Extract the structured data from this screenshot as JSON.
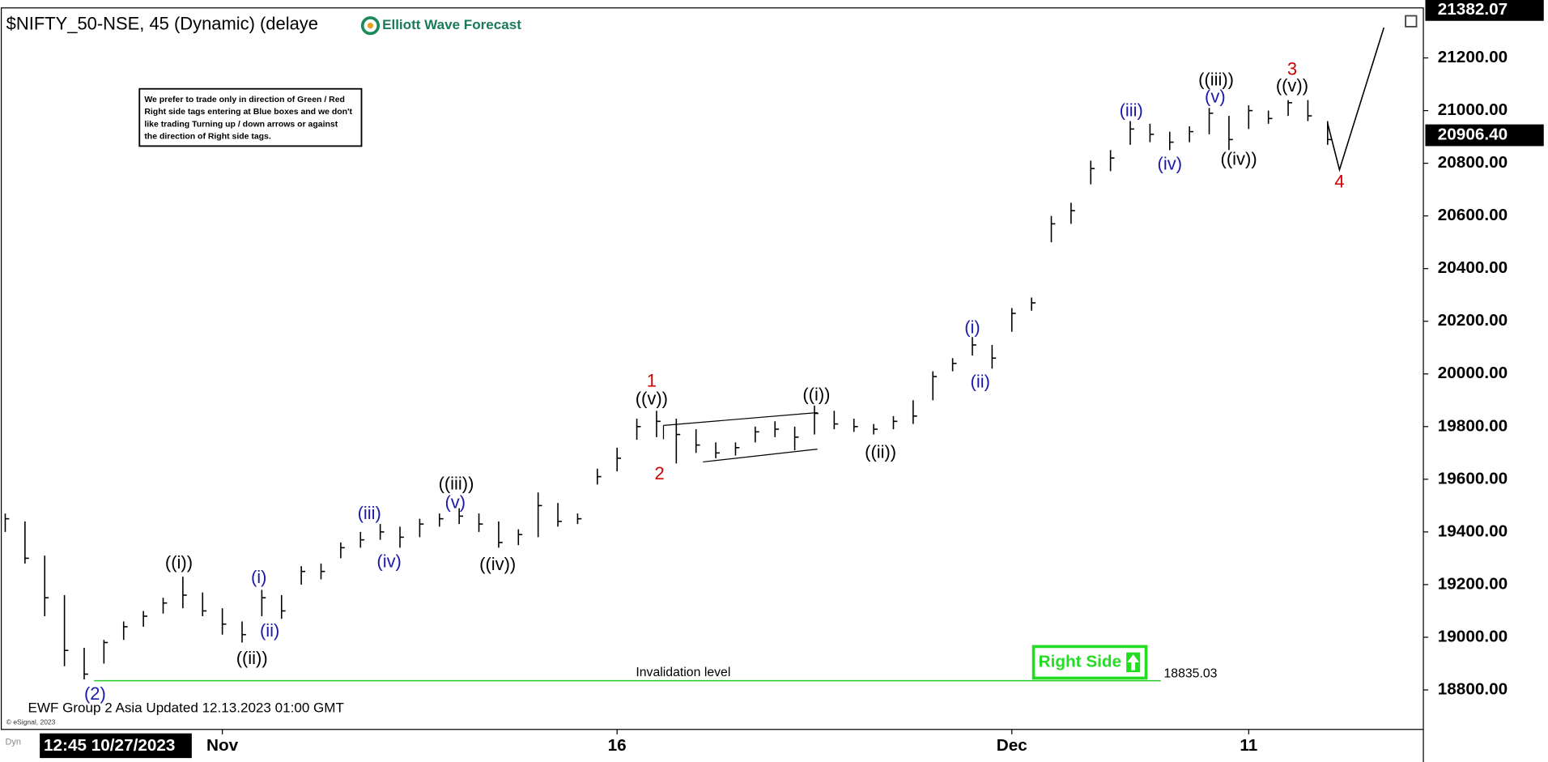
{
  "chart_data": {
    "type": "ohlc",
    "title": "$NIFTY_50-NSE, 45 (Dynamic) (delaye",
    "logo": "Elliott Wave Forecast",
    "note": [
      "We prefer to trade only in direction of Green / Red",
      "Right side tags entering at Blue boxes and we don't",
      "like trading Turning up / down arrows or against",
      "the direction of Right side tags."
    ],
    "footer": "EWF Group 2 Asia Updated 12.13.2023 01:00 GMT",
    "copyright": "© eSignal, 2023",
    "cursor_label": "12:45 10/27/2023",
    "corner_label": "Dyn",
    "right_side": {
      "text": "Right Side",
      "color": "#22dd22"
    },
    "color": "#000000",
    "categories": [
      null,
      null,
      null,
      null,
      null,
      null,
      null,
      null,
      null,
      null,
      null,
      "Nov",
      null,
      null,
      null,
      null,
      null,
      null,
      null,
      null,
      null,
      null,
      null,
      null,
      null,
      null,
      null,
      null,
      null,
      null,
      null,
      "16",
      null,
      null,
      null,
      null,
      null,
      null,
      null,
      null,
      null,
      null,
      null,
      null,
      null,
      null,
      null,
      null,
      null,
      null,
      null,
      "Dec",
      null,
      null,
      null,
      null,
      null,
      null,
      null,
      null,
      null,
      null,
      null,
      "11",
      null,
      null,
      null,
      null
    ],
    "high": [
      19470,
      19440,
      19310,
      19160,
      18960,
      18990,
      19060,
      19100,
      19150,
      19230,
      19170,
      19110,
      19060,
      19180,
      19160,
      19270,
      19280,
      19360,
      19400,
      19430,
      19420,
      19450,
      19470,
      19490,
      19470,
      19440,
      19410,
      19550,
      19510,
      19470,
      19640,
      19720,
      19830,
      19860,
      19830,
      19790,
      19740,
      19740,
      19800,
      19820,
      19800,
      19880,
      19860,
      19830,
      19810,
      19840,
      19900,
      20010,
      20060,
      20140,
      20110,
      20250,
      20290,
      20600,
      20650,
      20810,
      20850,
      20960,
      20950,
      20920,
      20940,
      21010,
      20980,
      21020,
      21000,
      21040,
      21040,
      20960
    ],
    "low": [
      19400,
      19280,
      19080,
      18890,
      18840,
      18900,
      18990,
      19040,
      19090,
      19110,
      19080,
      19010,
      18980,
      19080,
      19070,
      19200,
      19220,
      19300,
      19340,
      19370,
      19340,
      19380,
      19420,
      19430,
      19400,
      19340,
      19350,
      19380,
      19420,
      19430,
      19580,
      19630,
      19750,
      19760,
      19660,
      19700,
      19680,
      19690,
      19740,
      19760,
      19710,
      19770,
      19790,
      19780,
      19770,
      19790,
      19810,
      19900,
      20010,
      20070,
      20020,
      20160,
      20240,
      20500,
      20570,
      20720,
      20770,
      20870,
      20880,
      20850,
      20880,
      20910,
      20850,
      20930,
      20950,
      20980,
      20960,
      20870
    ],
    "close": [
      19450,
      19300,
      19150,
      18950,
      18860,
      18980,
      19040,
      19080,
      19130,
      19160,
      19100,
      19050,
      19010,
      19150,
      19100,
      19250,
      19250,
      19340,
      19370,
      19400,
      19380,
      19430,
      19450,
      19460,
      19430,
      19360,
      19390,
      19500,
      19440,
      19450,
      19610,
      19680,
      19800,
      19820,
      19770,
      19730,
      19700,
      19720,
      19780,
      19790,
      19760,
      19850,
      19810,
      19800,
      19790,
      19820,
      19840,
      19990,
      20040,
      20110,
      20060,
      20230,
      20270,
      20570,
      20620,
      20780,
      20820,
      20930,
      20910,
      20880,
      20920,
      20990,
      20890,
      21000,
      20970,
      21030,
      20980,
      20890
    ],
    "ylim": [
      18650,
      21390
    ],
    "yticks": [
      {
        "value": 18800,
        "label": "18800.00"
      },
      {
        "value": 19000,
        "label": "19000.00"
      },
      {
        "value": 19200,
        "label": "19200.00"
      },
      {
        "value": 19400,
        "label": "19400.00"
      },
      {
        "value": 19600,
        "label": "19600.00"
      },
      {
        "value": 19800,
        "label": "19800.00"
      },
      {
        "value": 20000,
        "label": "20000.00"
      },
      {
        "value": 20200,
        "label": "20200.00"
      },
      {
        "value": 20400,
        "label": "20400.00"
      },
      {
        "value": 20600,
        "label": "20600.00"
      },
      {
        "value": 20800,
        "label": "20800.00"
      },
      {
        "value": 21000,
        "label": "21000.00"
      },
      {
        "value": 21200,
        "label": "21200.00"
      }
    ],
    "top_price": {
      "value": 21382.07,
      "label": "21382.07"
    },
    "last_price": {
      "value": 20906.4,
      "label": "20906.40"
    },
    "invalidation": {
      "value": 18835.03,
      "label": "18835.03",
      "text": "Invalidation level",
      "color": "#22cc22"
    },
    "wave_labels": [
      {
        "text": "(2)",
        "color": "#1a1aa8"
      },
      {
        "text": "((i))",
        "color": "#000000"
      },
      {
        "text": "((ii))",
        "color": "#000000"
      },
      {
        "text": "(i)",
        "color": "#1a1aa8"
      },
      {
        "text": "(ii)",
        "color": "#1a1aa8"
      },
      {
        "text": "(iii)",
        "color": "#1a1aa8"
      },
      {
        "text": "(iv)",
        "color": "#1a1aa8"
      },
      {
        "text": "((iii))",
        "color": "#000000"
      },
      {
        "text": "(v)",
        "color": "#1a1aa8"
      },
      {
        "text": "((iv))",
        "color": "#000000"
      },
      {
        "text": "1",
        "color": "#cc0000"
      },
      {
        "text": "((v))",
        "color": "#000000"
      },
      {
        "text": "2",
        "color": "#cc0000"
      },
      {
        "text": "((i))",
        "color": "#000000"
      },
      {
        "text": "((ii))",
        "color": "#000000"
      },
      {
        "text": "(i)",
        "color": "#1a1aa8"
      },
      {
        "text": "(ii)",
        "color": "#1a1aa8"
      },
      {
        "text": "(iii)",
        "color": "#1a1aa8"
      },
      {
        "text": "(iv)",
        "color": "#1a1aa8"
      },
      {
        "text": "((iii))",
        "color": "#000000"
      },
      {
        "text": "(v)",
        "color": "#1a1aa8"
      },
      {
        "text": "((iv))",
        "color": "#000000"
      },
      {
        "text": "3",
        "color": "#cc0000"
      },
      {
        "text": "((v))",
        "color": "#000000"
      },
      {
        "text": "4",
        "color": "#cc0000"
      }
    ]
  }
}
